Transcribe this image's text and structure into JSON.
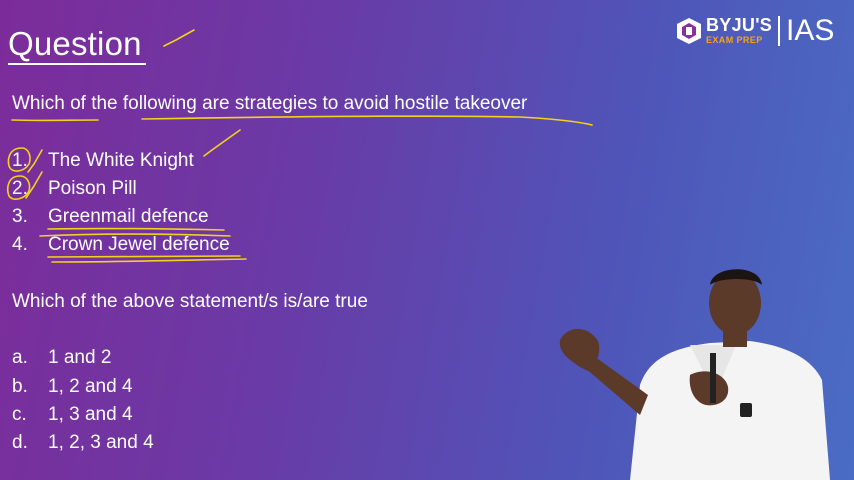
{
  "slide": {
    "title": "Question",
    "question": "Which of the following are strategies to avoid hostile takeover",
    "options": [
      {
        "num": "1.",
        "text": "The White Knight"
      },
      {
        "num": "2.",
        "text": "Poison Pill"
      },
      {
        "num": "3.",
        "text": "Greenmail defence"
      },
      {
        "num": "4.",
        "text": "Crown Jewel defence"
      }
    ],
    "prompt": "Which of the above statement/s is/are true",
    "answers": [
      {
        "letter": "a.",
        "text": "1 and 2"
      },
      {
        "letter": "b.",
        "text": "1, 2 and 4"
      },
      {
        "letter": "c.",
        "text": "1, 3 and 4"
      },
      {
        "letter": "d.",
        "text": "1, 2, 3 and 4"
      }
    ]
  },
  "logo": {
    "brand": "BYJU'S",
    "sub": "EXAM PREP",
    "product": "IAS"
  },
  "colors": {
    "background_left": "#7c2c9a",
    "background_right": "#4a6cc4",
    "annotation": "#f2d21a",
    "logo_accent": "#f6a21a"
  },
  "icons": {
    "logo_mark": "byjus-logo-icon"
  }
}
